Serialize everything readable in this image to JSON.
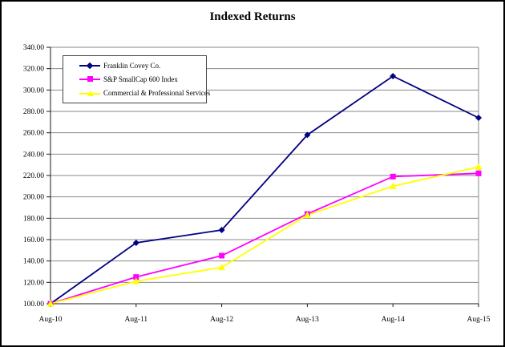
{
  "frame": {
    "background": "#ffffff",
    "border_color": "#000000"
  },
  "chart_data": {
    "type": "line",
    "title": "Indexed Returns",
    "xlabel": "",
    "ylabel": "",
    "categories": [
      "Aug-10",
      "Aug-11",
      "Aug-12",
      "Aug-13",
      "Aug-14",
      "Aug-15"
    ],
    "series": [
      {
        "name": "Franklin Covey Co.",
        "color": "#000080",
        "marker": "diamond",
        "values": [
          100.0,
          157.0,
          169.0,
          258.0,
          313.0,
          274.0
        ]
      },
      {
        "name": "S&P SmallCap 600 Index",
        "color": "#ff00ff",
        "marker": "square",
        "values": [
          100.0,
          125.0,
          145.0,
          184.0,
          219.0,
          222.0
        ]
      },
      {
        "name": "Commercial & Professional Services",
        "color": "#ffff00",
        "marker": "triangle",
        "values": [
          100.0,
          121.0,
          134.0,
          183.0,
          210.0,
          228.0
        ]
      }
    ],
    "ylim": [
      100,
      340
    ],
    "ytick_step": 20,
    "ytick_decimals": 2,
    "grid": "horizontal-only",
    "gridline_color": "#8a8a8a",
    "axis_color": "#1a1a1a",
    "tick_label_color": "#000000",
    "legend_position": "top-left-inside"
  }
}
